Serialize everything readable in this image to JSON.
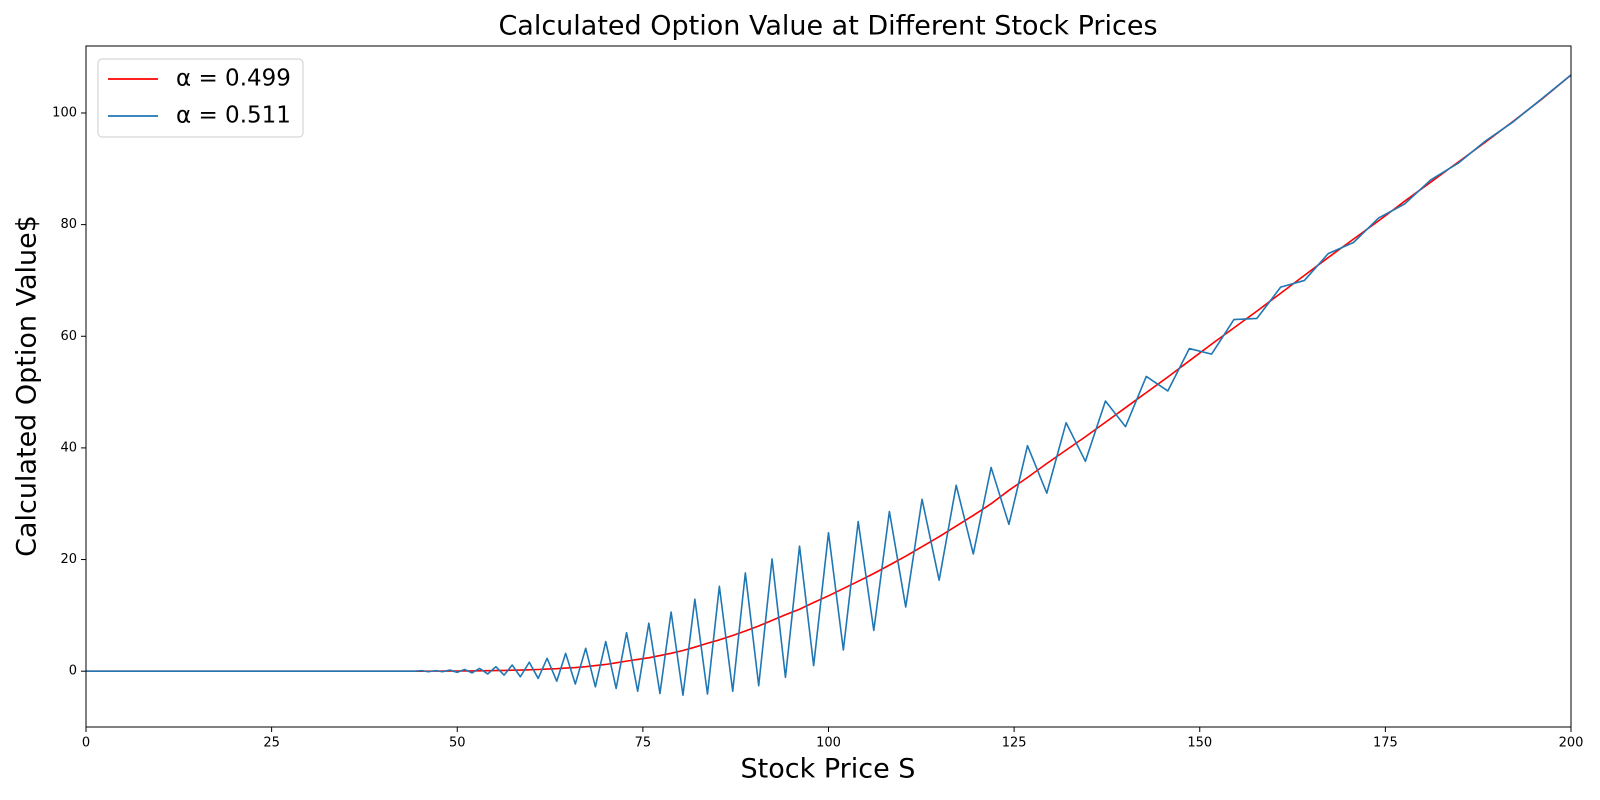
{
  "chart_data": {
    "type": "line",
    "title": "Calculated Option Value at Different Stock Prices",
    "xlabel": "Stock Price S",
    "ylabel": "Calculated Option Value$",
    "x": [
      0,
      41.0,
      41.8,
      42.6,
      43.5,
      44.3,
      45.2,
      46.1,
      47.1,
      48.0,
      49.0,
      50.0,
      51.0,
      52.0,
      53.0,
      54.1,
      55.2,
      56.3,
      57.4,
      58.5,
      59.7,
      60.9,
      62.1,
      63.4,
      64.6,
      65.9,
      67.3,
      68.6,
      70.0,
      71.4,
      72.8,
      74.3,
      75.8,
      77.3,
      78.8,
      80.4,
      82.0,
      83.7,
      85.3,
      87.1,
      88.8,
      90.6,
      92.4,
      94.2,
      96.1,
      98.0,
      100.0,
      102.0,
      104.0,
      106.1,
      108.2,
      110.4,
      112.6,
      114.9,
      117.2,
      119.5,
      121.9,
      124.3,
      126.8,
      129.4,
      132.0,
      134.6,
      137.3,
      140.0,
      142.8,
      145.7,
      148.6,
      151.6,
      154.6,
      157.7,
      160.9,
      164.1,
      167.3,
      170.7,
      174.1,
      177.6,
      181.1,
      184.8,
      188.5,
      192.2,
      196.1,
      200.0
    ],
    "series": [
      {
        "name": "α = 0.499",
        "color": "#ff0000",
        "values": [
          0,
          0,
          0,
          0,
          0,
          0,
          0,
          0.01,
          0.01,
          0.02,
          0.02,
          0.03,
          0.04,
          0.05,
          0.07,
          0.09,
          0.11,
          0.14,
          0.17,
          0.2,
          0.25,
          0.3,
          0.38,
          0.45,
          0.55,
          0.65,
          0.8,
          1.0,
          1.2,
          1.5,
          1.8,
          2.1,
          2.4,
          2.8,
          3.2,
          3.7,
          4.3,
          5.0,
          5.6,
          6.4,
          7.2,
          8.1,
          9.1,
          10.1,
          11.1,
          12.3,
          13.5,
          14.8,
          16.1,
          17.5,
          19.0,
          20.6,
          22.3,
          24.1,
          26.0,
          27.9,
          30.0,
          32.4,
          34.7,
          37.2,
          39.6,
          42.0,
          44.6,
          47.2,
          49.9,
          52.7,
          55.6,
          58.6,
          61.5,
          64.5,
          67.7,
          70.9,
          74.1,
          77.4,
          80.7,
          84.2,
          87.6,
          91.2,
          94.8,
          98.5,
          102.5,
          106.8
        ]
      },
      {
        "name": "α = 0.511",
        "color": "#1f77b4",
        "values": [
          0,
          0,
          0,
          0,
          0,
          0,
          0.1,
          -0.1,
          0.1,
          -0.1,
          0.2,
          -0.2,
          0.3,
          -0.3,
          0.5,
          -0.5,
          0.8,
          -0.7,
          1.1,
          -1.0,
          1.6,
          -1.3,
          2.3,
          -1.8,
          3.2,
          -2.3,
          4.1,
          -2.8,
          5.3,
          -3.1,
          6.9,
          -3.6,
          8.6,
          -4.0,
          10.6,
          -4.3,
          12.9,
          -4.1,
          15.2,
          -3.6,
          17.6,
          -2.6,
          20.1,
          -1.1,
          22.4,
          1.0,
          24.8,
          3.8,
          26.8,
          7.3,
          28.6,
          11.5,
          30.8,
          16.3,
          33.3,
          21.0,
          36.5,
          26.3,
          40.4,
          31.9,
          44.5,
          37.6,
          48.4,
          43.8,
          52.8,
          50.2,
          57.8,
          56.8,
          63.0,
          63.2,
          68.8,
          70.0,
          74.8,
          76.8,
          81.2,
          83.7,
          88.0,
          91.0,
          95.0,
          98.4,
          102.6,
          106.8
        ]
      }
    ],
    "xlim": [
      0,
      200
    ],
    "ylim": [
      -10,
      112
    ],
    "xticks": [
      0,
      25,
      50,
      75,
      100,
      125,
      150,
      175,
      200
    ],
    "yticks": [
      0,
      20,
      40,
      60,
      80,
      100
    ],
    "grid": false,
    "legend": "upper left"
  }
}
